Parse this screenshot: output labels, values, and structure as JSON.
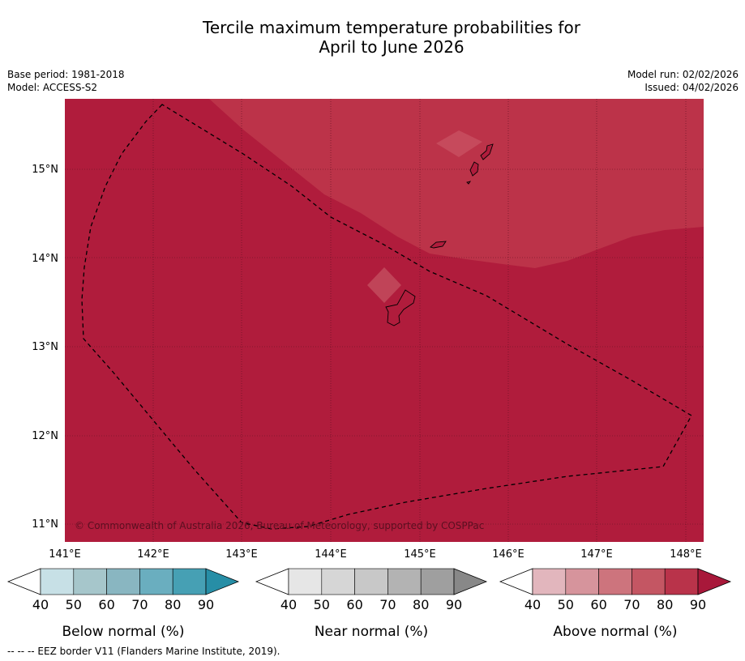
{
  "title": {
    "line1": "Tercile maximum temperature probabilities for",
    "line2": "April to June 2026"
  },
  "meta": {
    "base_period": "Base period: 1981-2018",
    "model": "Model: ACCESS-S2",
    "model_run": "Model run: 02/02/2026",
    "issued": "Issued: 04/02/2026"
  },
  "map": {
    "lat_labels": [
      "15°N",
      "14°N",
      "13°N",
      "12°N",
      "11°N"
    ],
    "lon_labels": [
      "141°E",
      "142°E",
      "143°E",
      "144°E",
      "145°E",
      "146°E",
      "147°E",
      "148°E"
    ],
    "copyright": "© Commonwealth of Australia 2026, Bureau of Meteorology, supported by COSPPac",
    "colors": {
      "above_80_90": "#b01c3c",
      "above_70_80": "#bc3349",
      "ocean_bg": "#ffffff"
    }
  },
  "colorbars": [
    {
      "label": "Below normal (%)",
      "ticks": [
        "40",
        "50",
        "60",
        "70",
        "80",
        "90"
      ],
      "colors": [
        "#ffffff",
        "#c7e0e6",
        "#a6c6cb",
        "#89b6c1",
        "#6aaebf",
        "#46a0b4",
        "#278ea6"
      ]
    },
    {
      "label": "Near normal (%)",
      "ticks": [
        "40",
        "50",
        "60",
        "70",
        "80",
        "90"
      ],
      "colors": [
        "#ffffff",
        "#e6e6e6",
        "#d6d6d6",
        "#c8c8c8",
        "#b3b3b3",
        "#9f9f9f",
        "#888888"
      ]
    },
    {
      "label": "Above normal (%)",
      "ticks": [
        "40",
        "50",
        "60",
        "70",
        "80",
        "90"
      ],
      "colors": [
        "#ffffff",
        "#e2b6bd",
        "#d6949c",
        "#cd747d",
        "#c45663",
        "#b9334a",
        "#a8183a"
      ]
    }
  ],
  "footer": "--  --  -- EEZ border V11 (Flanders Marine Institute, 2019)."
}
